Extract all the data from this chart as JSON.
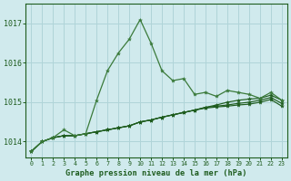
{
  "title": "Graphe pression niveau de la mer (hPa)",
  "bg": "#d0eaed",
  "grid_color": "#b0d4d8",
  "dark_green": "#1e5c1e",
  "light_green": "#3a7a3a",
  "xmin": -0.5,
  "xmax": 23.5,
  "ymin": 1013.6,
  "ymax": 1017.5,
  "yticks": [
    1014,
    1015,
    1016,
    1017
  ],
  "xticks": [
    0,
    1,
    2,
    3,
    4,
    5,
    6,
    7,
    8,
    9,
    10,
    11,
    12,
    13,
    14,
    15,
    16,
    17,
    18,
    19,
    20,
    21,
    22,
    23
  ],
  "spike_line": [
    1013.75,
    1014.0,
    1014.1,
    1014.3,
    1014.15,
    1014.2,
    1015.05,
    1015.8,
    1016.25,
    1016.6,
    1017.1,
    1016.5,
    1015.8,
    1015.55,
    1015.6,
    1015.2,
    1015.25,
    1015.15,
    1015.3,
    1015.25,
    1015.2,
    1015.1,
    1015.25,
    1015.05
  ],
  "flat1": [
    1013.75,
    1014.0,
    1014.1,
    1014.15,
    1014.15,
    1014.2,
    1014.25,
    1014.3,
    1014.35,
    1014.4,
    1014.5,
    1014.55,
    1014.62,
    1014.68,
    1014.74,
    1014.8,
    1014.87,
    1014.93,
    1015.0,
    1015.05,
    1015.08,
    1015.1,
    1015.18,
    1015.05
  ],
  "flat2": [
    1013.75,
    1014.0,
    1014.1,
    1014.15,
    1014.15,
    1014.2,
    1014.25,
    1014.3,
    1014.35,
    1014.4,
    1014.5,
    1014.55,
    1014.62,
    1014.68,
    1014.74,
    1014.8,
    1014.87,
    1014.9,
    1014.93,
    1014.97,
    1015.0,
    1015.05,
    1015.12,
    1014.97
  ],
  "flat3": [
    1013.75,
    1014.0,
    1014.1,
    1014.15,
    1014.15,
    1014.2,
    1014.25,
    1014.3,
    1014.35,
    1014.4,
    1014.5,
    1014.55,
    1014.62,
    1014.68,
    1014.74,
    1014.8,
    1014.85,
    1014.88,
    1014.9,
    1014.93,
    1014.95,
    1015.0,
    1015.07,
    1014.9
  ]
}
